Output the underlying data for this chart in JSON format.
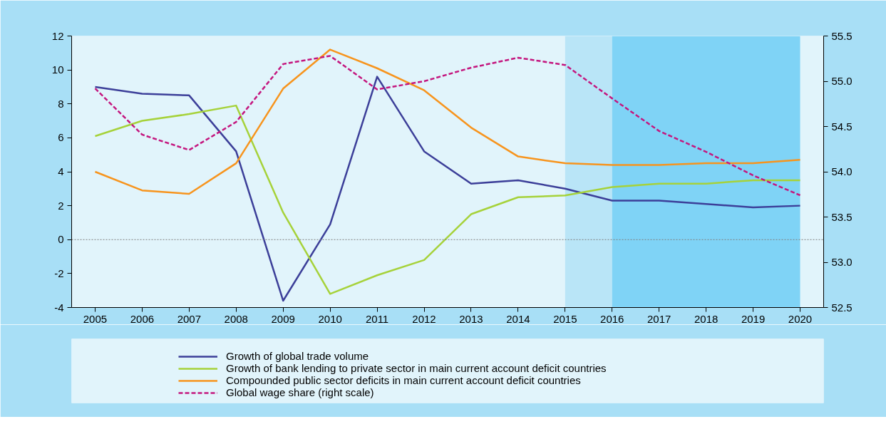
{
  "chart_data": {
    "type": "line",
    "categories": [
      "2005",
      "2006",
      "2007",
      "2008",
      "2009",
      "2010",
      "2011",
      "2012",
      "2013",
      "2014",
      "2015",
      "2016",
      "2017",
      "2018",
      "2019",
      "2020"
    ],
    "series": [
      {
        "name": "Growth of global trade volume",
        "color": "#3c3f99",
        "values": [
          9.0,
          8.6,
          8.5,
          5.2,
          -3.6,
          0.9,
          9.6,
          5.2,
          3.3,
          3.5,
          3.0,
          2.3,
          2.3,
          2.1,
          1.9,
          2.0
        ]
      },
      {
        "name": "Growth of bank lending to private sector in main current account deficit countries",
        "color": "#a6d23a",
        "values": [
          6.1,
          7.0,
          7.4,
          7.9,
          1.6,
          -3.2,
          -2.1,
          -1.2,
          1.5,
          2.5,
          2.6,
          3.1,
          3.3,
          3.3,
          3.5,
          3.5
        ]
      },
      {
        "name": "Compounded public sector deficits in main current account deficit countries",
        "color": "#f7941d",
        "values": [
          4.0,
          2.9,
          2.7,
          4.5,
          8.9,
          11.2,
          10.1,
          8.8,
          6.6,
          4.9,
          4.5,
          4.4,
          4.4,
          4.5,
          4.5,
          4.7
        ]
      },
      {
        "name": "Global wage share (right scale)",
        "color": "#c4177f",
        "axis": "y2",
        "line_style": "dashed",
        "values": [
          54.92,
          54.41,
          54.24,
          54.55,
          55.19,
          55.28,
          54.91,
          55.0,
          55.15,
          55.26,
          55.18,
          54.81,
          54.45,
          54.22,
          53.96,
          53.74
        ]
      }
    ],
    "ylim": [
      -4,
      12
    ],
    "yticks": [
      -4,
      -2,
      0,
      2,
      4,
      6,
      8,
      10,
      12
    ],
    "y2lim": [
      52.5,
      55.5
    ],
    "y2ticks": [
      52.5,
      {
        "value": 53,
        "label": "53.0"
      },
      53.5,
      {
        "value": 54,
        "label": "54.0"
      },
      54.5,
      {
        "value": 55,
        "label": "55.0"
      },
      55.5
    ],
    "ref_lines": [
      {
        "axis": "y",
        "value": 0,
        "color": "#7f7f7f",
        "line_style": "dotted"
      }
    ],
    "bands": [
      {
        "axis": "x",
        "from": "2015",
        "to": "2016",
        "color": "#b9e5f7"
      },
      {
        "axis": "x",
        "from": "2016",
        "to": "2020",
        "color": "#7fd3f6"
      }
    ],
    "grid": false,
    "legend": "bottom",
    "marker": "none",
    "line_style": "solid"
  }
}
